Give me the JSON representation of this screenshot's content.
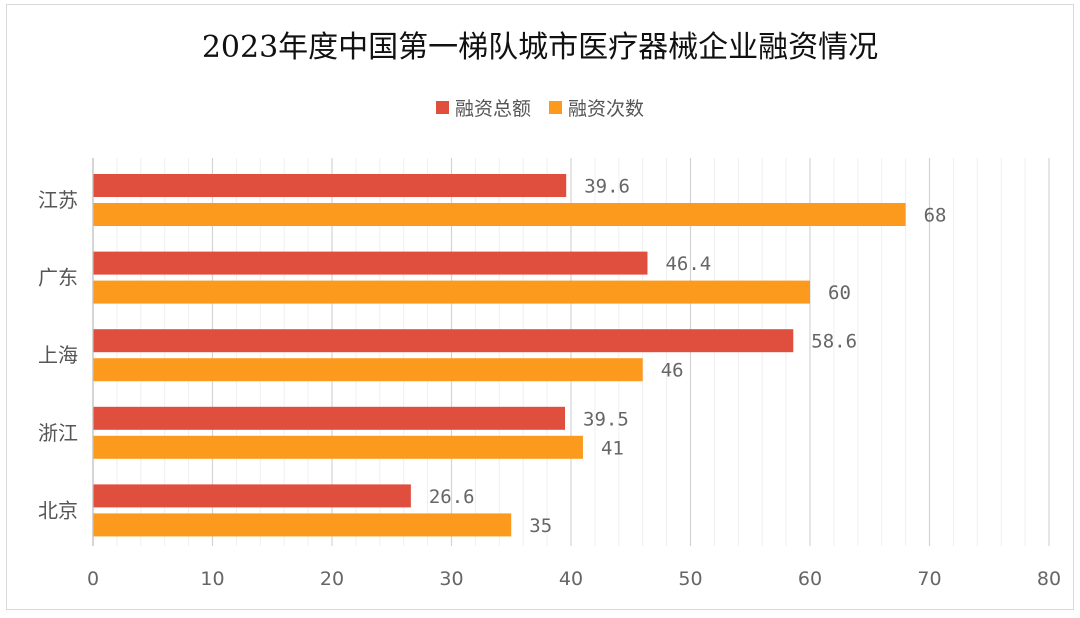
{
  "chart_data": {
    "type": "bar",
    "orientation": "horizontal",
    "title": "2023年度中国第一梯队城市医疗器械企业融资情况",
    "categories": [
      "江苏",
      "广东",
      "上海",
      "浙江",
      "北京"
    ],
    "series": [
      {
        "name": "融资总额",
        "color": "#e04e3e",
        "values": [
          39.6,
          46.4,
          58.6,
          39.5,
          26.6
        ],
        "labels": [
          "39.6",
          "46.4",
          "58.6",
          "39.5",
          "26.6"
        ]
      },
      {
        "name": "融资次数",
        "color": "#fb9a1c",
        "values": [
          68,
          60,
          46,
          41,
          35
        ],
        "labels": [
          "68",
          "60",
          "46",
          "41",
          "35"
        ]
      }
    ],
    "xlim": [
      0,
      80
    ],
    "xticks": [
      0,
      10,
      20,
      30,
      40,
      50,
      60,
      70,
      80
    ],
    "xtick_labels": [
      "0",
      "10",
      "20",
      "30",
      "40",
      "50",
      "60",
      "70",
      "80"
    ],
    "grid": true,
    "legend_position": "top-center"
  }
}
